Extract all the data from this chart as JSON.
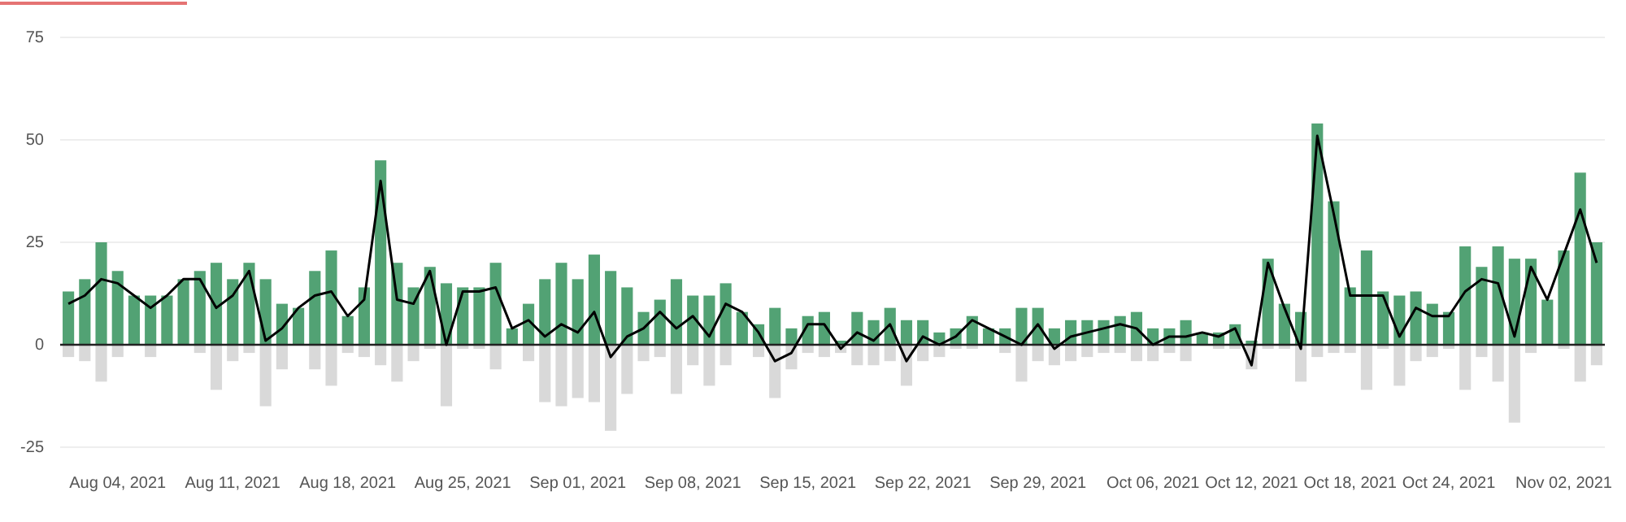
{
  "chart_data": {
    "type": "bar",
    "stacked": true,
    "grid": "y",
    "categories": [
      null,
      null,
      null,
      "Aug 04, 2021",
      null,
      null,
      null,
      null,
      null,
      null,
      "Aug 11, 2021",
      null,
      null,
      null,
      null,
      null,
      null,
      "Aug 18, 2021",
      null,
      null,
      null,
      null,
      null,
      null,
      "Aug 25, 2021",
      null,
      null,
      null,
      null,
      null,
      null,
      "Sep 01, 2021",
      null,
      null,
      null,
      null,
      null,
      null,
      "Sep 08, 2021",
      null,
      null,
      null,
      null,
      null,
      null,
      "Sep 15, 2021",
      null,
      null,
      null,
      null,
      null,
      null,
      "Sep 22, 2021",
      null,
      null,
      null,
      null,
      null,
      null,
      "Sep 29, 2021",
      null,
      null,
      null,
      null,
      null,
      null,
      "Oct 06, 2021",
      null,
      null,
      null,
      null,
      null,
      "Oct 12, 2021",
      null,
      null,
      null,
      null,
      null,
      "Oct 18, 2021",
      null,
      null,
      null,
      null,
      null,
      "Oct 24, 2021",
      null,
      null,
      null,
      null,
      null,
      null,
      "Nov 02, 2021",
      null,
      null
    ],
    "ylim": [
      -25,
      75
    ],
    "yticks": [
      -25,
      0,
      25,
      50,
      75
    ],
    "series": [
      {
        "color": "#52a274",
        "values": [
          13,
          16,
          25,
          18,
          12,
          12,
          12,
          16,
          18,
          20,
          16,
          20,
          16,
          10,
          9,
          18,
          23,
          7,
          14,
          45,
          20,
          14,
          19,
          15,
          14,
          14,
          20,
          4,
          10,
          16,
          20,
          16,
          22,
          18,
          14,
          8,
          11,
          16,
          12,
          12,
          15,
          8,
          5,
          9,
          4,
          7,
          8,
          1,
          8,
          6,
          9,
          6,
          6,
          3,
          4,
          7,
          4,
          4,
          9,
          9,
          4,
          6,
          6,
          6,
          7,
          8,
          4,
          4,
          6,
          3,
          3,
          5,
          1,
          21,
          10,
          8,
          54,
          35,
          14,
          23,
          13,
          12,
          13,
          10,
          8,
          24,
          19,
          24,
          21,
          21,
          11,
          23,
          42,
          25
        ]
      },
      {
        "color": "#d9d9d9",
        "values": [
          -3,
          -4,
          -9,
          -3,
          0,
          -3,
          0,
          0,
          -2,
          -11,
          -4,
          -2,
          -15,
          -6,
          0,
          -6,
          -10,
          -2,
          -3,
          -5,
          -9,
          -4,
          -1,
          -15,
          -1,
          -1,
          -6,
          0,
          -4,
          -14,
          -15,
          -13,
          -14,
          -21,
          -12,
          -4,
          -3,
          -12,
          -5,
          -10,
          -5,
          0,
          -3,
          -13,
          -6,
          -2,
          -3,
          -2,
          -5,
          -5,
          -4,
          -10,
          -4,
          -3,
          -1,
          -1,
          0,
          -2,
          -9,
          -4,
          -5,
          -4,
          -3,
          -2,
          -2,
          -4,
          -4,
          -2,
          -4,
          0,
          -1,
          -1,
          -6,
          -1,
          -1,
          -9,
          -3,
          -2,
          -2,
          -11,
          -1,
          -10,
          -4,
          -3,
          -1,
          -11,
          -3,
          -9,
          -19,
          -2,
          0,
          -1,
          -9,
          -5
        ]
      },
      {
        "type": "line",
        "color": "#000000",
        "values": [
          10,
          12,
          16,
          15,
          12,
          9,
          12,
          16,
          16,
          9,
          12,
          18,
          1,
          4,
          9,
          12,
          13,
          7,
          11,
          40,
          11,
          10,
          18,
          0,
          13,
          13,
          14,
          4,
          6,
          2,
          5,
          3,
          8,
          -3,
          2,
          4,
          8,
          4,
          7,
          2,
          10,
          8,
          3,
          -4,
          -2,
          5,
          5,
          -1,
          3,
          1,
          5,
          -4,
          2,
          0,
          2,
          6,
          4,
          2,
          0,
          5,
          -1,
          2,
          3,
          4,
          5,
          4,
          0,
          2,
          2,
          3,
          2,
          4,
          -5,
          20,
          9,
          -1,
          51,
          32,
          12,
          12,
          12,
          2,
          9,
          7,
          7,
          13,
          16,
          15,
          2,
          19,
          11,
          22,
          33,
          20
        ]
      }
    ]
  }
}
